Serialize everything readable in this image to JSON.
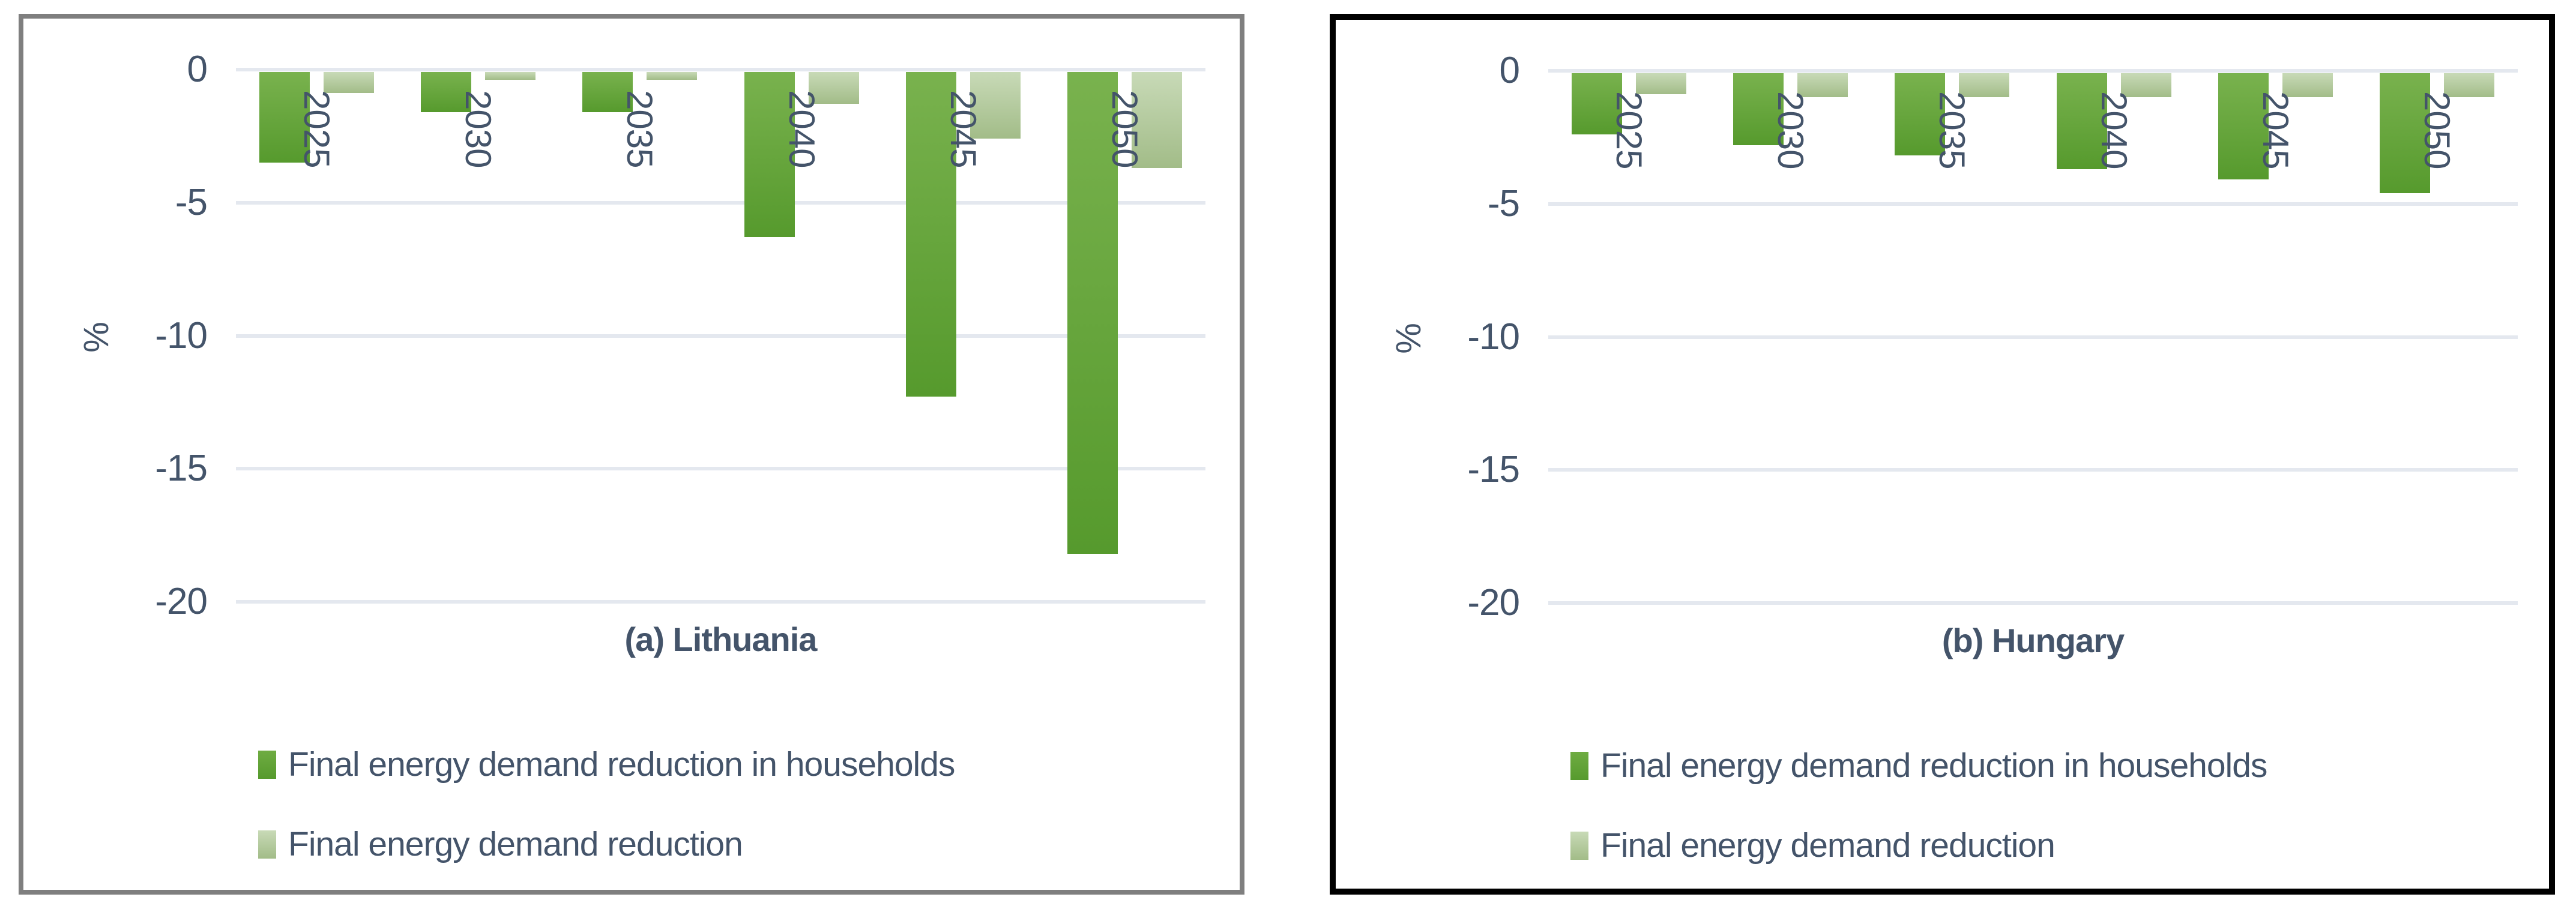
{
  "colors": {
    "text": "#44546A",
    "gridline": "#E4E8EF",
    "bar_dark_top": "#79B24E",
    "bar_dark_bottom": "#569A2D",
    "bar_light_top": "#C8DAB7",
    "bar_light_bottom": "#A2BC88",
    "panel_a_border": "#7F7F7F",
    "panel_b_border": "#000000"
  },
  "chart_data": [
    {
      "type": "bar",
      "title": "(a) Lithuania",
      "xlabel": "",
      "ylabel": "%",
      "categories": [
        "2025",
        "2030",
        "2035",
        "2040",
        "2045",
        "2050"
      ],
      "series": [
        {
          "name": "Final energy demand reduction in households",
          "values": [
            -3.4,
            -1.5,
            -1.5,
            -6.2,
            -12.2,
            -18.1
          ]
        },
        {
          "name": "Final energy demand reduction",
          "values": [
            -0.8,
            -0.3,
            -0.3,
            -1.2,
            -2.5,
            -3.6
          ]
        }
      ],
      "ylim": [
        -20,
        0
      ],
      "yticks": [
        0,
        -5,
        -10,
        -15,
        -20
      ],
      "grid": true,
      "legend_position": "bottom"
    },
    {
      "type": "bar",
      "title": "(b) Hungary",
      "xlabel": "",
      "ylabel": "%",
      "categories": [
        "2025",
        "2030",
        "2035",
        "2040",
        "2045",
        "2050"
      ],
      "series": [
        {
          "name": "Final energy demand reduction in households",
          "values": [
            -2.3,
            -2.7,
            -3.1,
            -3.6,
            -4.0,
            -4.5
          ]
        },
        {
          "name": "Final energy demand reduction",
          "values": [
            -0.8,
            -0.9,
            -0.9,
            -0.9,
            -0.9,
            -0.9
          ]
        }
      ],
      "ylim": [
        -20,
        0
      ],
      "yticks": [
        0,
        -5,
        -10,
        -15,
        -20
      ],
      "grid": true,
      "legend_position": "bottom"
    }
  ]
}
